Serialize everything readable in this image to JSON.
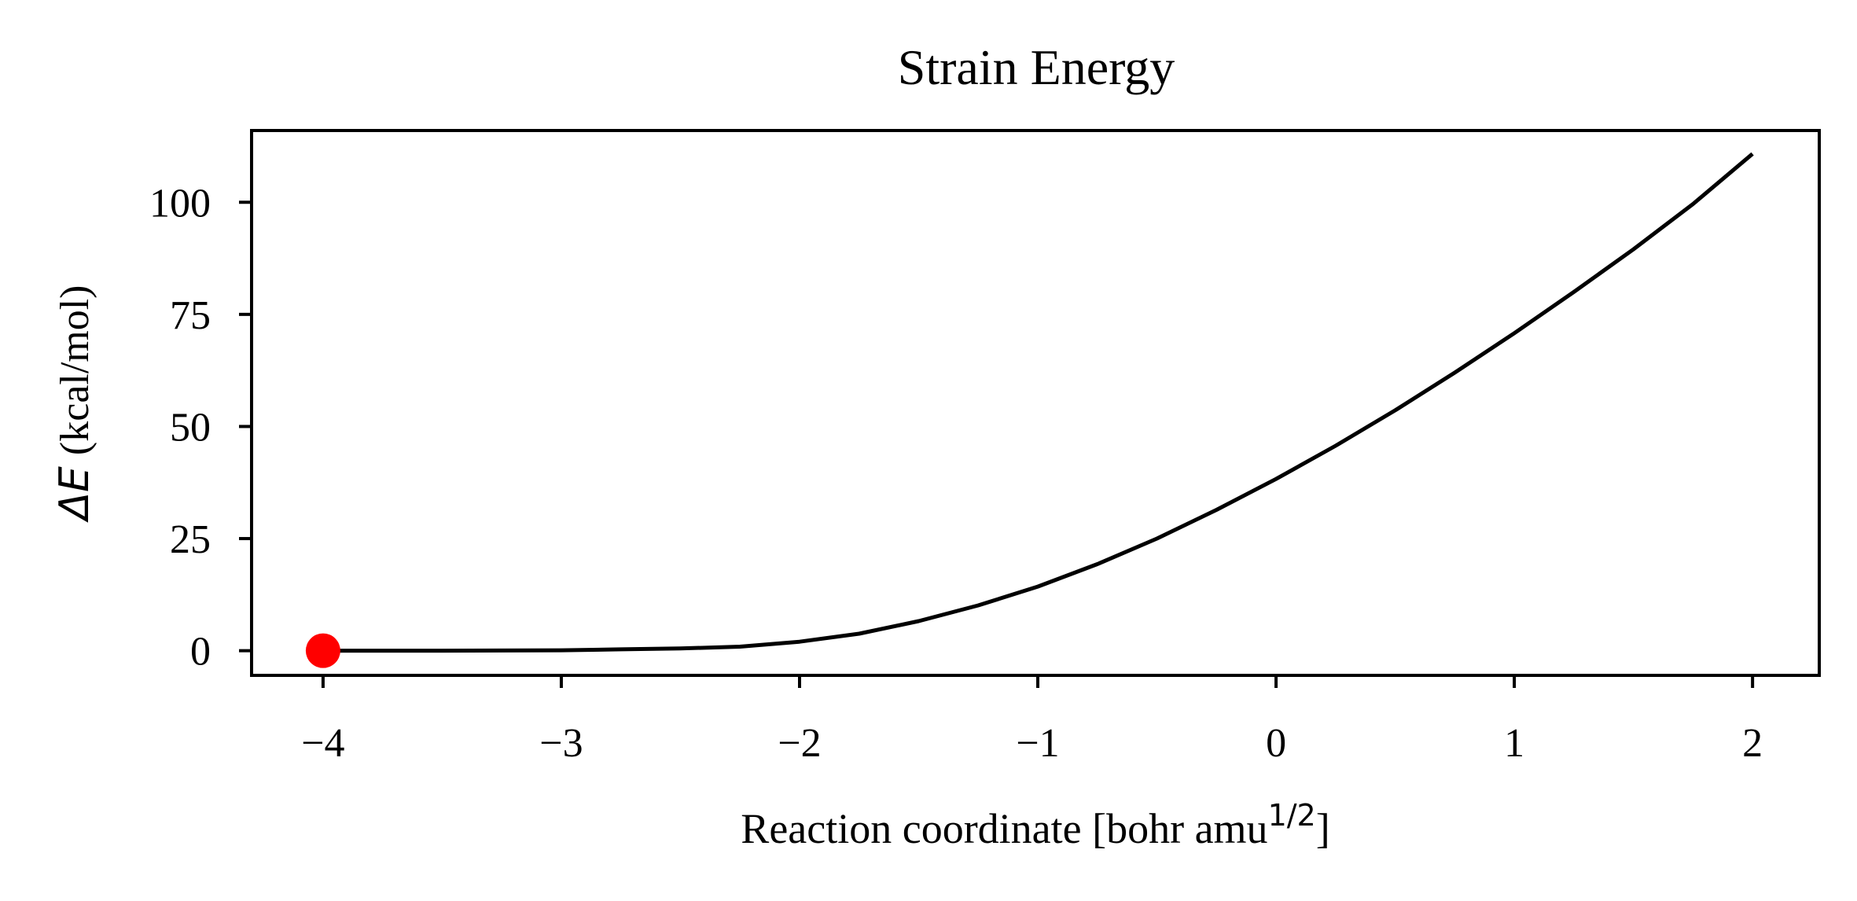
{
  "chart_data": {
    "type": "line",
    "title": "Strain Energy",
    "xlabel": "Reaction coordinate [bohr amu",
    "xlabel_sup": "1/2",
    "xlabel_end": "]",
    "ylabel_symbol": "ΔE",
    "ylabel_units": "(kcal/mol)",
    "xlim": [
      -4.3,
      2.28
    ],
    "ylim": [
      -5.5,
      116
    ],
    "xticks": [
      -4,
      -3,
      -2,
      -1,
      0,
      1,
      2
    ],
    "xtick_labels": [
      "−4",
      "−3",
      "−2",
      "−1",
      "0",
      "1",
      "2"
    ],
    "yticks": [
      0,
      25,
      50,
      75,
      100
    ],
    "ytick_labels": [
      "0",
      "25",
      "50",
      "75",
      "100"
    ],
    "grid": false,
    "series": [
      {
        "color": "#000000",
        "x": [
          -4.0,
          -3.5,
          -3.0,
          -2.75,
          -2.5,
          -2.25,
          -2.0,
          -1.75,
          -1.5,
          -1.25,
          -1.0,
          -0.75,
          -0.5,
          -0.25,
          0.0,
          0.25,
          0.5,
          0.75,
          1.0,
          1.25,
          1.5,
          1.75,
          2.0
        ],
        "y": [
          0.0,
          0.0,
          0.1,
          0.3,
          0.5,
          0.9,
          2.0,
          3.8,
          6.6,
          10.1,
          14.3,
          19.3,
          25.0,
          31.4,
          38.3,
          45.7,
          53.6,
          62.0,
          70.8,
          80.0,
          89.5,
          99.6,
          110.8
        ]
      }
    ],
    "marker": {
      "x": -4.0,
      "y": 0.0,
      "color": "#ff0000"
    }
  }
}
